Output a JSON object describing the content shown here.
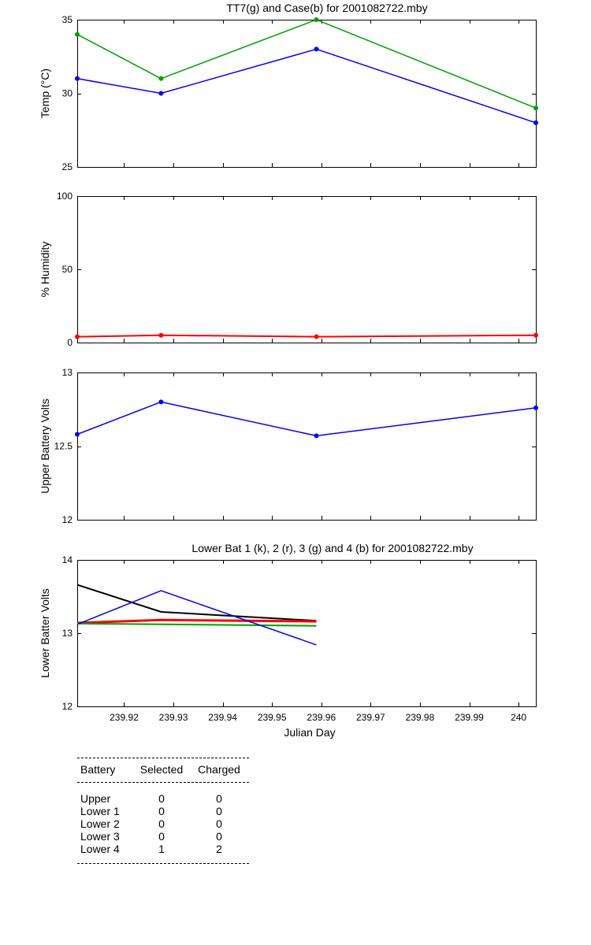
{
  "chart_data": [
    {
      "type": "line",
      "title": "TT7(g) and Case(b) for 2001082722.mby",
      "xlabel": "",
      "ylabel": "Temp  (°C)",
      "xlim": [
        239.9105,
        240.0035
      ],
      "ylim": [
        25,
        35
      ],
      "yticks": [
        25,
        30,
        35
      ],
      "show_x_ticklabels": false,
      "series": [
        {
          "name": "TT7",
          "color": "#00a000",
          "marker": "dot",
          "x": [
            239.9105,
            239.9275,
            239.959,
            240.0035
          ],
          "y": [
            34,
            31,
            35,
            29
          ]
        },
        {
          "name": "Case",
          "color": "#0000ff",
          "marker": "dot",
          "x": [
            239.9105,
            239.9275,
            239.959,
            240.0035
          ],
          "y": [
            31,
            30,
            33,
            28
          ]
        }
      ]
    },
    {
      "type": "line",
      "title": "",
      "xlabel": "",
      "ylabel": "% Humidity",
      "xlim": [
        239.9105,
        240.0035
      ],
      "ylim": [
        0,
        100
      ],
      "yticks": [
        0,
        50,
        100
      ],
      "show_x_ticklabels": false,
      "series": [
        {
          "name": "Humidity",
          "color": "#ff0000",
          "marker": "dot",
          "width": 2,
          "x": [
            239.9105,
            239.9275,
            239.959,
            240.0035
          ],
          "y": [
            4,
            5,
            4,
            5
          ]
        }
      ]
    },
    {
      "type": "line",
      "title": "",
      "xlabel": "",
      "ylabel": "Upper Battery Volts",
      "xlim": [
        239.9105,
        240.0035
      ],
      "ylim": [
        12,
        13
      ],
      "yticks": [
        12,
        12.5,
        13
      ],
      "ytick_labels": [
        "12",
        "12.5",
        "13"
      ],
      "show_x_ticklabels": false,
      "series": [
        {
          "name": "Upper",
          "color": "#0000ff",
          "marker": "dot",
          "x": [
            239.9105,
            239.9275,
            239.959,
            240.0035
          ],
          "y": [
            12.58,
            12.8,
            12.57,
            12.76
          ]
        }
      ]
    },
    {
      "type": "line",
      "title": "Lower Bat 1 (k), 2 (r), 3 (g) and 4 (b) for 2001082722.mby",
      "xlabel": "Julian Day",
      "ylabel": "Lower Batter Volts",
      "xlim": [
        239.9105,
        240.0035
      ],
      "ylim": [
        12,
        14
      ],
      "yticks": [
        12,
        13,
        14
      ],
      "xticks": [
        239.92,
        239.93,
        239.94,
        239.95,
        239.96,
        239.97,
        239.98,
        239.99,
        240.0
      ],
      "xtick_labels": [
        "239.92",
        "239.93",
        "239.94",
        "239.95",
        "239.96",
        "239.97",
        "239.98",
        "239.99",
        "240"
      ],
      "show_x_ticklabels": true,
      "series": [
        {
          "name": "Lower 1",
          "color": "#000000",
          "marker": "none",
          "width": 2,
          "x": [
            239.9105,
            239.9275,
            239.959
          ],
          "y": [
            13.66,
            13.29,
            13.17
          ]
        },
        {
          "name": "Lower 2",
          "color": "#ff0000",
          "marker": "none",
          "width": 3,
          "x": [
            239.9105,
            239.9275,
            239.959
          ],
          "y": [
            13.14,
            13.18,
            13.16
          ]
        },
        {
          "name": "Lower 3",
          "color": "#00a000",
          "marker": "none",
          "width": 2,
          "x": [
            239.9105,
            239.9275,
            239.959
          ],
          "y": [
            13.13,
            13.12,
            13.1
          ]
        },
        {
          "name": "Lower 4",
          "color": "#0000ff",
          "marker": "none",
          "width": 1.5,
          "x": [
            239.9105,
            239.9275,
            239.959
          ],
          "y": [
            13.12,
            13.58,
            12.84
          ]
        }
      ]
    }
  ],
  "status_table": {
    "headers": [
      "Battery",
      "Selected",
      "Charged"
    ],
    "rows": [
      [
        "Upper",
        "0",
        "0"
      ],
      [
        "Lower 1",
        "0",
        "0"
      ],
      [
        "Lower 2",
        "0",
        "0"
      ],
      [
        "Lower 3",
        "0",
        "0"
      ],
      [
        "Lower 4",
        "1",
        "2"
      ]
    ]
  }
}
